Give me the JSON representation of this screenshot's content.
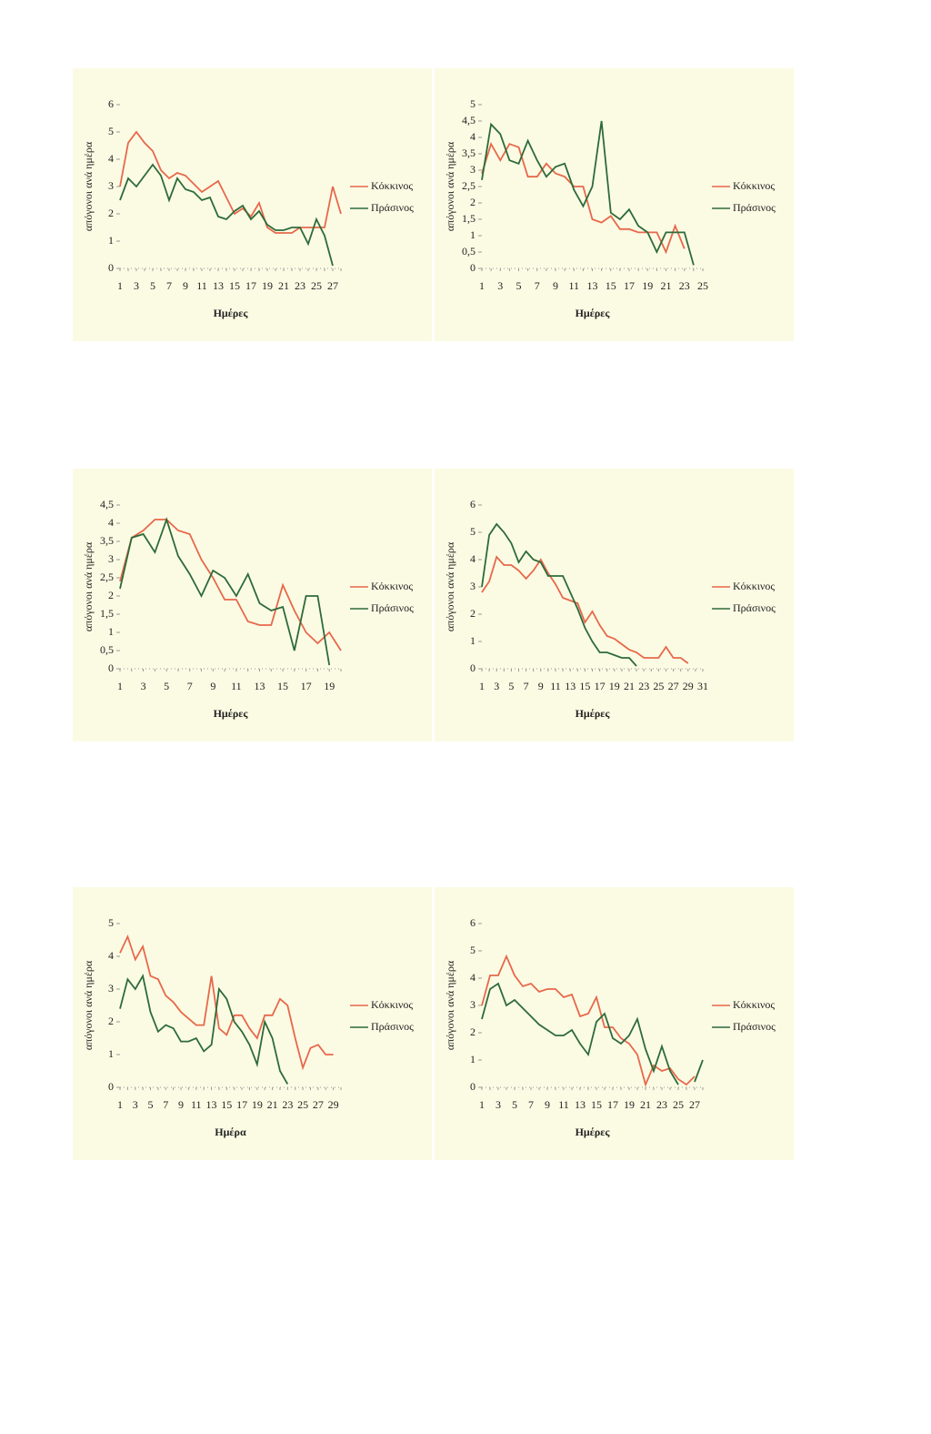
{
  "chart_data": [
    {
      "type": "line",
      "y_label": "απόγονοι ανά ημέρα",
      "x_label": "Ημέρες",
      "categories": [
        1,
        null,
        3,
        null,
        5,
        null,
        7,
        null,
        9,
        null,
        11,
        null,
        13,
        null,
        15,
        null,
        17,
        null,
        19,
        null,
        21,
        null,
        23,
        null,
        25,
        null,
        27,
        null
      ],
      "series": [
        {
          "name": "Κόκκινος",
          "color": "#e8684a",
          "values": [
            3,
            4.6,
            5,
            4.6,
            4.3,
            3.6,
            3.3,
            3.5,
            3.4,
            3.1,
            2.8,
            3,
            3.2,
            2.6,
            2,
            2.2,
            1.9,
            2.4,
            1.5,
            1.3,
            1.3,
            1.3,
            1.5,
            1.5,
            1.5,
            1.5,
            3,
            2
          ]
        },
        {
          "name": "Πράσινος",
          "color": "#2e6b3a",
          "values": [
            2.5,
            3.3,
            3,
            3.4,
            3.8,
            3.4,
            2.5,
            3.3,
            2.9,
            2.8,
            2.5,
            2.6,
            1.9,
            1.8,
            2.1,
            2.3,
            1.8,
            2.1,
            1.6,
            1.4,
            1.4,
            1.5,
            1.5,
            0.9,
            1.8,
            1.2,
            0.1,
            null
          ]
        }
      ],
      "ylim": [
        0,
        6
      ],
      "yticks": [
        0,
        1,
        2,
        3,
        4,
        5,
        6
      ]
    },
    {
      "type": "line",
      "y_label": "απόγονοι ανά ημέρα",
      "x_label": "Ημέρες",
      "categories": [
        1,
        null,
        3,
        null,
        5,
        null,
        7,
        null,
        9,
        null,
        11,
        null,
        13,
        null,
        15,
        null,
        17,
        null,
        19,
        null,
        21,
        null,
        23,
        null,
        25
      ],
      "series": [
        {
          "name": "Κόκκινος",
          "color": "#e8684a",
          "values": [
            2.9,
            3.8,
            3.3,
            3.8,
            3.7,
            2.8,
            2.8,
            3.2,
            2.9,
            2.8,
            2.5,
            2.5,
            1.5,
            1.4,
            1.6,
            1.2,
            1.2,
            1.1,
            1.1,
            1.1,
            0.5,
            1.3,
            0.6,
            null,
            null
          ]
        },
        {
          "name": "Πράσινος",
          "color": "#2e6b3a",
          "values": [
            2.7,
            4.4,
            4.1,
            3.3,
            3.2,
            3.9,
            3.3,
            2.8,
            3.1,
            3.2,
            2.4,
            1.9,
            2.5,
            4.5,
            1.7,
            1.5,
            1.8,
            1.3,
            1.1,
            0.5,
            1.1,
            1.1,
            1.1,
            0.1,
            null
          ]
        }
      ],
      "ylim": [
        0,
        5
      ],
      "yticks": [
        0,
        {
          "value": 0.5,
          "label": "0,5"
        },
        1,
        {
          "value": 1.5,
          "label": "1,5"
        },
        2,
        {
          "value": 2.5,
          "label": "2,5"
        },
        3,
        {
          "value": 3.5,
          "label": "3,5"
        },
        4,
        {
          "value": 4.5,
          "label": "4,5"
        },
        5
      ]
    },
    {
      "type": "line",
      "y_label": "απόγονοι ανά ημέρα",
      "x_label": "Ημέρες",
      "categories": [
        1,
        null,
        3,
        null,
        5,
        null,
        7,
        null,
        9,
        null,
        11,
        null,
        13,
        null,
        15,
        null,
        17,
        null,
        19,
        null
      ],
      "series": [
        {
          "name": "Κόκκινος",
          "color": "#e8684a",
          "values": [
            2.4,
            3.6,
            3.8,
            4.1,
            4.1,
            3.8,
            3.7,
            3,
            2.5,
            1.9,
            1.9,
            1.3,
            1.2,
            1.2,
            2.3,
            1.6,
            1,
            0.7,
            1,
            0.5
          ]
        },
        {
          "name": "Πράσινος",
          "color": "#2e6b3a",
          "values": [
            2.2,
            3.6,
            3.7,
            3.2,
            4.1,
            3.1,
            2.6,
            2,
            2.7,
            2.5,
            2,
            2.6,
            1.8,
            1.6,
            1.7,
            0.5,
            2,
            2,
            0.1,
            null
          ]
        }
      ],
      "ylim": [
        0,
        4.5
      ],
      "yticks": [
        0,
        {
          "value": 0.5,
          "label": "0,5"
        },
        1,
        {
          "value": 1.5,
          "label": "1,5"
        },
        2,
        {
          "value": 2.5,
          "label": "2,5"
        },
        3,
        {
          "value": 3.5,
          "label": "3,5"
        },
        4,
        {
          "value": 4.5,
          "label": "4,5"
        }
      ]
    },
    {
      "type": "line",
      "y_label": "απόγονοι ανά ημέρα",
      "x_label": "Ημέρες",
      "categories": [
        1,
        null,
        3,
        null,
        5,
        null,
        7,
        null,
        9,
        null,
        11,
        null,
        13,
        null,
        15,
        null,
        17,
        null,
        19,
        null,
        21,
        null,
        23,
        null,
        25,
        null,
        27,
        null,
        29,
        null,
        31
      ],
      "series": [
        {
          "name": "Κόκκινος",
          "color": "#e8684a",
          "values": [
            2.8,
            3.2,
            4.1,
            3.8,
            3.8,
            3.6,
            3.3,
            3.6,
            4,
            3.5,
            3.1,
            2.6,
            2.5,
            2.4,
            1.7,
            2.1,
            1.6,
            1.2,
            1.1,
            0.9,
            0.7,
            0.6,
            0.4,
            0.4,
            0.4,
            0.8,
            0.4,
            0.4,
            0.2,
            null,
            null
          ]
        },
        {
          "name": "Πράσινος",
          "color": "#2e6b3a",
          "values": [
            3,
            4.9,
            5.3,
            5,
            4.6,
            3.9,
            4.3,
            4,
            3.9,
            3.4,
            3.4,
            3.4,
            2.8,
            2.2,
            1.5,
            1,
            0.6,
            0.6,
            0.5,
            0.4,
            0.4,
            0.1,
            null,
            null,
            null,
            null,
            null,
            null,
            null,
            null,
            null
          ]
        }
      ],
      "ylim": [
        0,
        6
      ],
      "yticks": [
        0,
        1,
        2,
        3,
        4,
        5,
        6
      ]
    },
    {
      "type": "line",
      "y_label": "απόγονοι ανά ημέρα",
      "x_label": "Ημέρα",
      "categories": [
        1,
        null,
        3,
        null,
        5,
        null,
        7,
        null,
        9,
        null,
        11,
        null,
        13,
        null,
        15,
        null,
        17,
        null,
        19,
        null,
        21,
        null,
        23,
        null,
        25,
        null,
        27,
        null,
        29,
        null
      ],
      "series": [
        {
          "name": "Κόκκινος",
          "color": "#e8684a",
          "values": [
            4.1,
            4.6,
            3.9,
            4.3,
            3.4,
            3.3,
            2.8,
            2.6,
            2.3,
            2.1,
            1.9,
            1.9,
            3.4,
            1.8,
            1.6,
            2.2,
            2.2,
            1.8,
            1.5,
            2.2,
            2.2,
            2.7,
            2.5,
            1.5,
            0.6,
            1.2,
            1.3,
            1,
            1,
            null
          ]
        },
        {
          "name": "Πράσινος",
          "color": "#2e6b3a",
          "values": [
            2.4,
            3.3,
            3,
            3.4,
            2.3,
            1.7,
            1.9,
            1.8,
            1.4,
            1.4,
            1.5,
            1.1,
            1.3,
            3,
            2.7,
            2,
            1.7,
            1.3,
            0.7,
            2,
            1.5,
            0.5,
            0.1,
            null,
            null,
            null,
            null,
            null,
            null,
            null
          ]
        }
      ],
      "ylim": [
        0,
        5
      ],
      "yticks": [
        0,
        1,
        2,
        3,
        4,
        5
      ]
    },
    {
      "type": "line",
      "y_label": "απόγονοι ανά ημέρα",
      "x_label": "Ημέρες",
      "categories": [
        1,
        null,
        3,
        null,
        5,
        null,
        7,
        null,
        9,
        null,
        11,
        null,
        13,
        null,
        15,
        null,
        17,
        null,
        19,
        null,
        21,
        null,
        23,
        null,
        25,
        null,
        27,
        null
      ],
      "series": [
        {
          "name": "Κόκκινος",
          "color": "#e8684a",
          "values": [
            3,
            4.1,
            4.1,
            4.8,
            4.1,
            3.7,
            3.8,
            3.5,
            3.6,
            3.6,
            3.3,
            3.4,
            2.6,
            2.7,
            3.3,
            2.2,
            2.2,
            1.8,
            1.6,
            1.2,
            0.1,
            0.8,
            0.6,
            0.7,
            0.3,
            0.1,
            0.4,
            null
          ]
        },
        {
          "name": "Πράσινος",
          "color": "#2e6b3a",
          "values": [
            2.5,
            3.6,
            3.8,
            3,
            3.2,
            2.9,
            2.6,
            2.3,
            2.1,
            1.9,
            1.9,
            2.1,
            1.6,
            1.2,
            2.4,
            2.7,
            1.8,
            1.6,
            1.9,
            2.5,
            1.4,
            0.6,
            1.5,
            0.6,
            0.1,
            null,
            0.2,
            1
          ]
        }
      ],
      "ylim": [
        0,
        6
      ],
      "yticks": [
        0,
        1,
        2,
        3,
        4,
        5,
        6
      ]
    }
  ]
}
